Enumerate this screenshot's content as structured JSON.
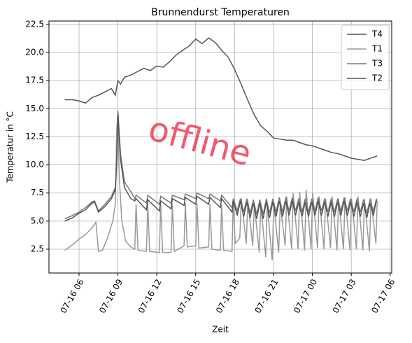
{
  "chart_data": {
    "type": "line",
    "title": "Brunnendurst Temperaturen",
    "x_label": "Zeit",
    "y_label": "Temperatur in °C",
    "watermark": "offline",
    "xlim": [
      3.68,
      30.12
    ],
    "ylim": [
      0.38,
      22.81
    ],
    "xticks": [
      {
        "value": 6,
        "label": "07-16 06"
      },
      {
        "value": 9,
        "label": "07-16 09"
      },
      {
        "value": 12,
        "label": "07-16 12"
      },
      {
        "value": 15,
        "label": "07-16 15"
      },
      {
        "value": 18,
        "label": "07-16 18"
      },
      {
        "value": 21,
        "label": "07-16 21"
      },
      {
        "value": 24,
        "label": "07-17 00"
      },
      {
        "value": 27,
        "label": "07-17 03"
      },
      {
        "value": 30,
        "label": "07-17 06"
      }
    ],
    "yticks": [
      2.5,
      {
        "value": 5,
        "label": "5.0"
      },
      7.5,
      {
        "value": 10,
        "label": "10.0"
      },
      12.5,
      {
        "value": 15,
        "label": "15.0"
      },
      17.5,
      {
        "value": 20,
        "label": "20.0"
      },
      22.5
    ],
    "grid": true,
    "legend": "upper right",
    "series": [
      {
        "name": "T4",
        "color": "#555555",
        "x": [
          4.9,
          5.5,
          6.0,
          6.5,
          7.0,
          7.5,
          8.0,
          8.5,
          8.8,
          9.0,
          9.2,
          9.5,
          10.0,
          10.5,
          11.0,
          11.5,
          12.0,
          12.5,
          13.0,
          13.5,
          14.0,
          14.5,
          15.0,
          15.5,
          16.0,
          16.5,
          17.0,
          17.5,
          18.0,
          18.5,
          19.0,
          19.5,
          20.0,
          20.5,
          21.0,
          21.5,
          22.0,
          22.5,
          23.0,
          23.5,
          24.0,
          24.5,
          25.0,
          25.5,
          26.0,
          26.5,
          27.0,
          27.5,
          28.0,
          28.5,
          29.0
        ],
        "values": [
          15.8,
          15.8,
          15.7,
          15.5,
          16.0,
          16.2,
          16.5,
          16.8,
          16.2,
          17.5,
          17.2,
          17.8,
          18.0,
          18.3,
          18.6,
          18.4,
          18.8,
          18.7,
          19.2,
          19.8,
          20.2,
          20.6,
          21.2,
          20.8,
          21.3,
          20.9,
          20.2,
          19.6,
          18.5,
          17.2,
          15.8,
          14.5,
          13.5,
          13.0,
          12.4,
          12.3,
          12.2,
          12.2,
          12.0,
          11.8,
          11.7,
          11.5,
          11.3,
          11.1,
          11.0,
          10.8,
          10.6,
          10.5,
          10.4,
          10.6,
          10.8
        ]
      },
      {
        "name": "T1",
        "color": "#999999",
        "x": [
          4.9,
          5.5,
          6.0,
          6.5,
          7.0,
          7.3,
          7.5,
          7.8,
          8.2,
          8.6,
          8.8,
          8.9,
          9.0,
          9.1,
          9.3,
          9.6,
          10.0,
          10.3,
          10.4,
          10.55,
          11.2,
          11.3,
          11.45,
          12.2,
          12.3,
          12.45,
          13.1,
          13.2,
          13.35,
          14.1,
          14.2,
          14.35,
          15.0,
          15.1,
          15.25,
          16.0,
          16.1,
          16.25,
          16.9,
          17.0,
          17.15,
          17.8,
          17.9,
          18.05,
          18.4,
          18.52,
          18.9,
          19.02,
          19.4,
          19.52,
          19.9,
          20.02,
          20.4,
          20.52,
          20.9,
          21.02,
          21.4,
          21.52,
          21.9,
          22.02,
          22.4,
          22.52,
          22.9,
          23.02,
          23.4,
          23.52,
          23.9,
          24.02,
          24.4,
          24.52,
          24.9,
          25.02,
          25.4,
          25.52,
          25.9,
          26.02,
          26.4,
          26.52,
          26.9,
          27.02,
          27.4,
          27.52,
          27.9,
          28.02,
          28.4,
          28.52,
          28.9,
          29.0
        ],
        "values": [
          2.4,
          2.9,
          3.4,
          3.8,
          4.4,
          4.9,
          2.3,
          2.4,
          3.5,
          5.0,
          6.5,
          13.0,
          14.8,
          9.0,
          5.0,
          3.2,
          2.7,
          2.5,
          6.5,
          2.4,
          2.3,
          6.5,
          2.3,
          2.2,
          6.5,
          2.2,
          2.2,
          6.5,
          2.3,
          2.8,
          6.6,
          2.7,
          2.8,
          6.6,
          2.6,
          2.7,
          6.5,
          2.5,
          2.4,
          6.5,
          2.4,
          2.3,
          6.7,
          3.0,
          3.5,
          7.0,
          3.0,
          6.8,
          2.8,
          6.5,
          2.2,
          6.5,
          1.8,
          6.4,
          1.5,
          6.5,
          2.2,
          6.5,
          2.8,
          7.2,
          2.5,
          7.5,
          2.5,
          7.6,
          2.4,
          7.8,
          2.5,
          7.5,
          2.6,
          7.2,
          2.5,
          7.0,
          2.6,
          7.2,
          2.4,
          7.0,
          2.5,
          7.1,
          2.4,
          7.0,
          2.5,
          7.2,
          2.4,
          7.0,
          2.3,
          7.0,
          3.0,
          6.8
        ]
      },
      {
        "name": "T3",
        "color": "#777777",
        "x": [
          4.9,
          5.5,
          6.0,
          6.5,
          7.0,
          7.2,
          7.5,
          8.0,
          8.5,
          8.8,
          8.9,
          9.0,
          9.2,
          9.5,
          10.0,
          10.3,
          10.4,
          11.2,
          11.3,
          12.2,
          12.3,
          13.1,
          13.2,
          14.1,
          14.2,
          15.0,
          15.1,
          16.0,
          16.1,
          16.9,
          17.0,
          17.8,
          17.9,
          18.2,
          18.45,
          18.7,
          18.95,
          19.2,
          19.45,
          19.7,
          19.95,
          20.2,
          20.45,
          20.7,
          20.95,
          21.2,
          21.45,
          21.7,
          21.95,
          22.2,
          22.45,
          22.7,
          22.95,
          23.2,
          23.45,
          23.7,
          23.95,
          24.2,
          24.45,
          24.7,
          24.95,
          25.2,
          25.45,
          25.7,
          25.95,
          26.2,
          26.45,
          26.7,
          26.95,
          27.2,
          27.45,
          27.7,
          27.95,
          28.2,
          28.45,
          28.7,
          28.95
        ],
        "values": [
          5.2,
          5.5,
          5.8,
          6.2,
          6.7,
          6.8,
          5.9,
          6.5,
          7.2,
          8.0,
          10.5,
          14.8,
          11.0,
          8.5,
          7.6,
          7.0,
          7.3,
          6.6,
          7.3,
          6.5,
          7.2,
          6.6,
          7.3,
          6.9,
          7.4,
          7.0,
          7.5,
          7.0,
          7.4,
          6.8,
          7.3,
          6.2,
          7.0,
          5.9,
          7.0,
          5.8,
          7.0,
          5.7,
          6.9,
          5.6,
          6.9,
          5.6,
          7.0,
          5.7,
          7.0,
          5.8,
          7.1,
          5.8,
          7.1,
          5.9,
          7.1,
          5.9,
          7.0,
          5.8,
          7.0,
          5.8,
          7.0,
          5.9,
          7.1,
          5.9,
          7.0,
          5.8,
          7.0,
          5.8,
          7.0,
          5.9,
          7.1,
          5.9,
          7.0,
          5.8,
          7.0,
          5.8,
          6.9,
          5.7,
          6.9,
          5.9,
          7.0
        ]
      },
      {
        "name": "T2",
        "color": "#555555",
        "x": [
          4.9,
          5.5,
          6.0,
          6.5,
          7.0,
          7.2,
          7.5,
          8.0,
          8.5,
          8.8,
          8.9,
          9.0,
          9.2,
          9.5,
          10.0,
          10.3,
          10.4,
          11.2,
          11.3,
          12.2,
          12.3,
          13.1,
          13.2,
          14.1,
          14.2,
          15.0,
          15.1,
          16.0,
          16.1,
          16.9,
          17.0,
          17.8,
          17.9,
          18.2,
          18.45,
          18.7,
          18.95,
          19.2,
          19.45,
          19.7,
          19.95,
          20.2,
          20.45,
          20.7,
          20.95,
          21.2,
          21.45,
          21.7,
          21.95,
          22.2,
          22.45,
          22.7,
          22.95,
          23.2,
          23.45,
          23.7,
          23.95,
          24.2,
          24.45,
          24.7,
          24.95,
          25.2,
          25.45,
          25.7,
          25.95,
          26.2,
          26.45,
          26.7,
          26.95,
          27.2,
          27.45,
          27.7,
          27.95,
          28.2,
          28.45,
          28.7,
          28.95
        ],
        "values": [
          5.0,
          5.3,
          5.7,
          6.0,
          6.6,
          6.7,
          5.8,
          6.3,
          7.0,
          7.8,
          10.0,
          14.5,
          10.5,
          8.0,
          7.0,
          6.8,
          7.0,
          6.0,
          6.9,
          5.9,
          6.8,
          6.1,
          7.0,
          6.4,
          7.1,
          6.5,
          7.2,
          6.5,
          7.1,
          6.2,
          7.0,
          5.8,
          6.8,
          5.5,
          6.8,
          5.4,
          6.7,
          5.3,
          6.6,
          5.2,
          6.6,
          5.2,
          6.7,
          5.3,
          6.7,
          5.4,
          6.8,
          5.4,
          6.8,
          5.5,
          6.8,
          5.5,
          6.7,
          5.4,
          6.7,
          5.4,
          6.7,
          5.5,
          6.8,
          5.5,
          6.7,
          5.4,
          6.7,
          5.4,
          6.7,
          5.5,
          6.8,
          5.5,
          6.7,
          5.4,
          6.7,
          5.4,
          6.6,
          5.3,
          6.6,
          5.5,
          6.9
        ]
      }
    ]
  }
}
